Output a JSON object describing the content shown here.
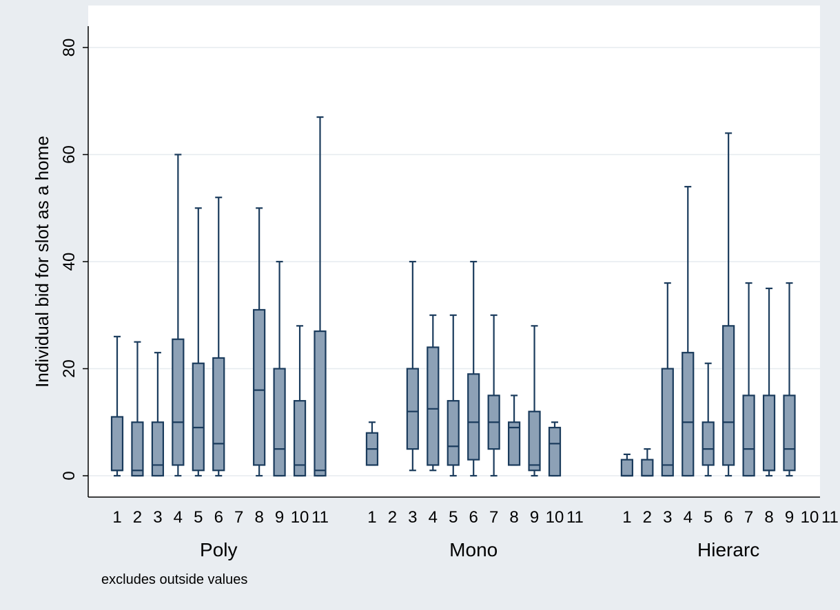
{
  "chart_data": {
    "type": "box",
    "ylabel": "Individual bid for slot as a home",
    "note": "excludes outside values",
    "ylim": [
      -4,
      84
    ],
    "yticks": [
      0,
      20,
      40,
      60,
      80
    ],
    "grid": true,
    "colors": {
      "box_fill": "#8da1b6",
      "box_stroke": "#1a3b5c",
      "grid": "#e9edf1",
      "plot_bg": "#ffffff",
      "outer_bg": "#e9edf1"
    },
    "groups": [
      {
        "name": "Poly",
        "categories": [
          "1",
          "2",
          "3",
          "4",
          "5",
          "6",
          "7",
          "8",
          "9",
          "10",
          "11"
        ],
        "boxes": [
          {
            "cat": "1",
            "min": 0,
            "q1": 1,
            "median": 1,
            "q3": 11,
            "max": 26
          },
          {
            "cat": "2",
            "min": 0,
            "q1": 0,
            "median": 1,
            "q3": 10,
            "max": 25
          },
          {
            "cat": "3",
            "min": 0,
            "q1": 0,
            "median": 2,
            "q3": 10,
            "max": 23
          },
          {
            "cat": "4",
            "min": 0,
            "q1": 2,
            "median": 10,
            "q3": 25.5,
            "max": 60
          },
          {
            "cat": "5",
            "min": 0,
            "q1": 1,
            "median": 9,
            "q3": 21,
            "max": 50
          },
          {
            "cat": "6",
            "min": 0,
            "q1": 1,
            "median": 6,
            "q3": 22,
            "max": 52
          },
          null,
          {
            "cat": "8",
            "min": 0,
            "q1": 2,
            "median": 16,
            "q3": 31,
            "max": 50
          },
          {
            "cat": "9",
            "min": 0,
            "q1": 0,
            "median": 5,
            "q3": 20,
            "max": 40
          },
          {
            "cat": "10",
            "min": 0,
            "q1": 0,
            "median": 2,
            "q3": 14,
            "max": 28
          },
          {
            "cat": "11",
            "min": 0,
            "q1": 0,
            "median": 1,
            "q3": 27,
            "max": 67
          }
        ]
      },
      {
        "name": "Mono",
        "categories": [
          "1",
          "2",
          "3",
          "4",
          "5",
          "6",
          "7",
          "8",
          "9",
          "10",
          "11"
        ],
        "boxes": [
          {
            "cat": "1",
            "min": 2,
            "q1": 2,
            "median": 5,
            "q3": 8,
            "max": 10
          },
          null,
          {
            "cat": "3",
            "min": 1,
            "q1": 5,
            "median": 12,
            "q3": 20,
            "max": 40
          },
          {
            "cat": "4",
            "min": 1,
            "q1": 2,
            "median": 12.5,
            "q3": 24,
            "max": 30
          },
          {
            "cat": "5",
            "min": 0,
            "q1": 2,
            "median": 5.5,
            "q3": 14,
            "max": 30
          },
          {
            "cat": "6",
            "min": 0,
            "q1": 3,
            "median": 10,
            "q3": 19,
            "max": 40
          },
          {
            "cat": "7",
            "min": 0,
            "q1": 5,
            "median": 10,
            "q3": 15,
            "max": 30
          },
          {
            "cat": "8",
            "min": 2,
            "q1": 2,
            "median": 9,
            "q3": 10,
            "max": 15
          },
          {
            "cat": "9",
            "min": 0,
            "q1": 1,
            "median": 2,
            "q3": 12,
            "max": 28
          },
          {
            "cat": "10",
            "min": 0,
            "q1": 0,
            "median": 6,
            "q3": 9,
            "max": 10
          },
          null
        ]
      },
      {
        "name": "Hierarc",
        "categories": [
          "1",
          "2",
          "3",
          "4",
          "5",
          "6",
          "7",
          "8",
          "9",
          "10",
          "11"
        ],
        "boxes": [
          {
            "cat": "1",
            "min": 0,
            "q1": 0,
            "median": 0,
            "q3": 3,
            "max": 4
          },
          {
            "cat": "2",
            "min": 0,
            "q1": 0,
            "median": 0,
            "q3": 3,
            "max": 5
          },
          {
            "cat": "3",
            "min": 0,
            "q1": 0,
            "median": 2,
            "q3": 20,
            "max": 36
          },
          {
            "cat": "4",
            "min": 0,
            "q1": 0,
            "median": 10,
            "q3": 23,
            "max": 54
          },
          {
            "cat": "5",
            "min": 0,
            "q1": 2,
            "median": 5,
            "q3": 10,
            "max": 21
          },
          {
            "cat": "6",
            "min": 0,
            "q1": 2,
            "median": 10,
            "q3": 28,
            "max": 64
          },
          {
            "cat": "7",
            "min": 0,
            "q1": 0,
            "median": 5,
            "q3": 15,
            "max": 36
          },
          {
            "cat": "8",
            "min": 0,
            "q1": 1,
            "median": 1,
            "q3": 15,
            "max": 35
          },
          {
            "cat": "9",
            "min": 0,
            "q1": 1,
            "median": 5,
            "q3": 15,
            "max": 36
          },
          null,
          null
        ]
      }
    ]
  }
}
